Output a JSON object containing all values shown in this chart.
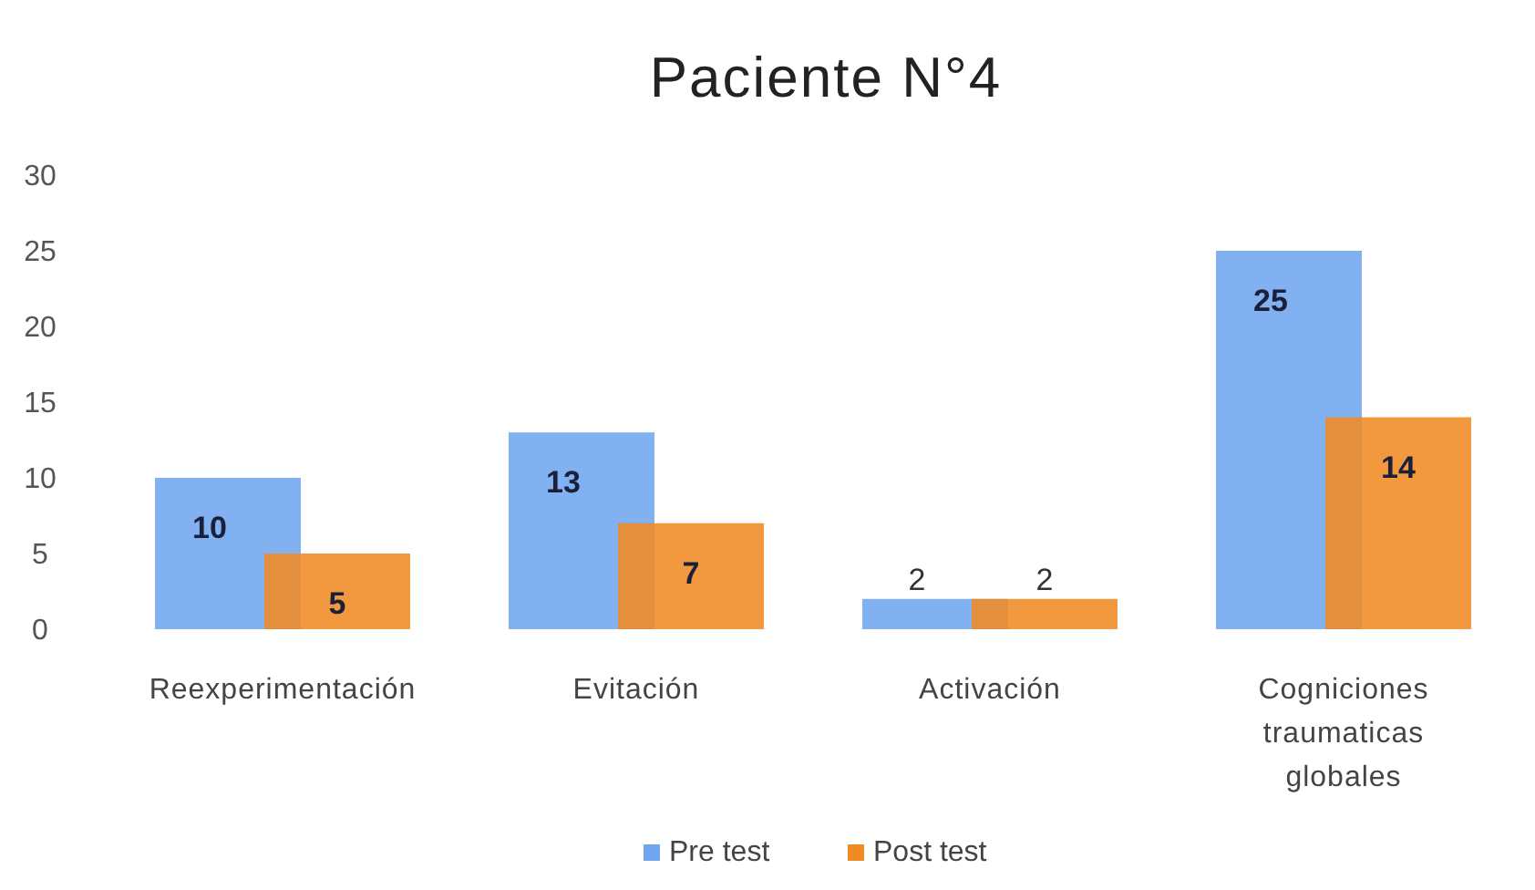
{
  "chart_data": {
    "type": "bar",
    "title": "Paciente N°4",
    "categories": [
      "Reexperimentación",
      "Evitación",
      "Activación",
      "Cogniciones traumaticas globales"
    ],
    "series": [
      {
        "name": "Pre test",
        "color": "#6fa6ee",
        "values": [
          10,
          13,
          2,
          25
        ]
      },
      {
        "name": "Post test",
        "color": "#f08a24",
        "values": [
          5,
          7,
          2,
          14
        ]
      }
    ],
    "ylim": [
      0,
      30
    ],
    "yticks": [
      0,
      5,
      10,
      15,
      20,
      25,
      30
    ],
    "grid": false,
    "legend": "bottom",
    "data_labels": true
  }
}
